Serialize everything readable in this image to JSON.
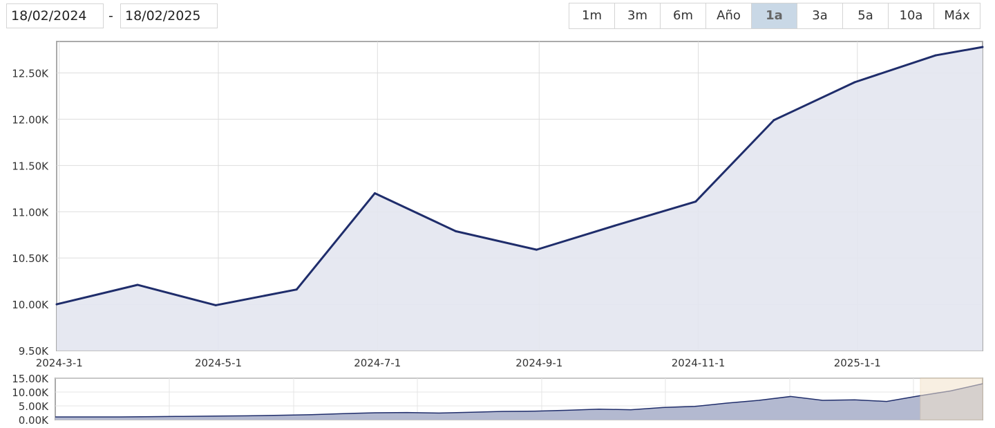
{
  "date_range": {
    "from": "18/02/2024",
    "separator": "-",
    "to": "18/02/2025"
  },
  "range_buttons": [
    {
      "label": "1m",
      "active": false
    },
    {
      "label": "3m",
      "active": false
    },
    {
      "label": "6m",
      "active": false
    },
    {
      "label": "Año",
      "active": false
    },
    {
      "label": "1a",
      "active": true
    },
    {
      "label": "3a",
      "active": false
    },
    {
      "label": "5a",
      "active": false
    },
    {
      "label": "10a",
      "active": false
    },
    {
      "label": "Máx",
      "active": false
    }
  ],
  "colors": {
    "line": "#1f2d6b",
    "area": "#e3e6ef",
    "navigator_area": "#b3b9d0",
    "navigator_selection": "#f3e3cc",
    "active_button": "#c9d8e6"
  },
  "chart_data": [
    {
      "type": "area",
      "title": "",
      "xlabel": "",
      "ylabel": "",
      "x": [
        "2024-02-29",
        "2024-03-31",
        "2024-04-30",
        "2024-05-31",
        "2024-06-30",
        "2024-07-31",
        "2024-08-31",
        "2024-09-30",
        "2024-10-31",
        "2024-11-30",
        "2024-12-31",
        "2025-01-31",
        "2025-02-18"
      ],
      "values": [
        10000,
        10210,
        9990,
        10160,
        11200,
        10790,
        10590,
        10850,
        11110,
        11990,
        12400,
        12690,
        12780
      ],
      "xlim": [
        "2024-02-29",
        "2025-02-18"
      ],
      "ylim": [
        9500,
        12840
      ],
      "yticks": [
        9500,
        10000,
        10500,
        11000,
        11500,
        12000,
        12500
      ],
      "ytick_labels": [
        "9.50K",
        "10.00K",
        "10.50K",
        "11.00K",
        "11.50K",
        "12.00K",
        "12.50K"
      ],
      "xticks": [
        "2024-03-01",
        "2024-05-01",
        "2024-07-01",
        "2024-09-01",
        "2024-11-01",
        "2025-01-01"
      ],
      "xtick_labels": [
        "2024-3-1",
        "2024-5-1",
        "2024-7-1",
        "2024-9-1",
        "2024-11-1",
        "2025-1-1"
      ],
      "grid": true,
      "legend": "none"
    },
    {
      "type": "area",
      "role": "navigator",
      "values": [
        1000,
        1000,
        1000,
        1100,
        1200,
        1300,
        1400,
        1600,
        1800,
        2200,
        2500,
        2600,
        2400,
        2700,
        3000,
        3100,
        3400,
        3800,
        3600,
        4400,
        4800,
        6000,
        7000,
        8400,
        7000,
        7200,
        6600,
        8600,
        10400,
        13000
      ],
      "ylim": [
        0,
        15000
      ],
      "yticks": [
        0,
        5000,
        10000,
        15000
      ],
      "ytick_labels": [
        "0.00K",
        "5.00K",
        "10.00K",
        "15.00K"
      ],
      "selected_range": [
        "18/02/2024",
        "18/02/2025"
      ],
      "grid": true
    }
  ]
}
